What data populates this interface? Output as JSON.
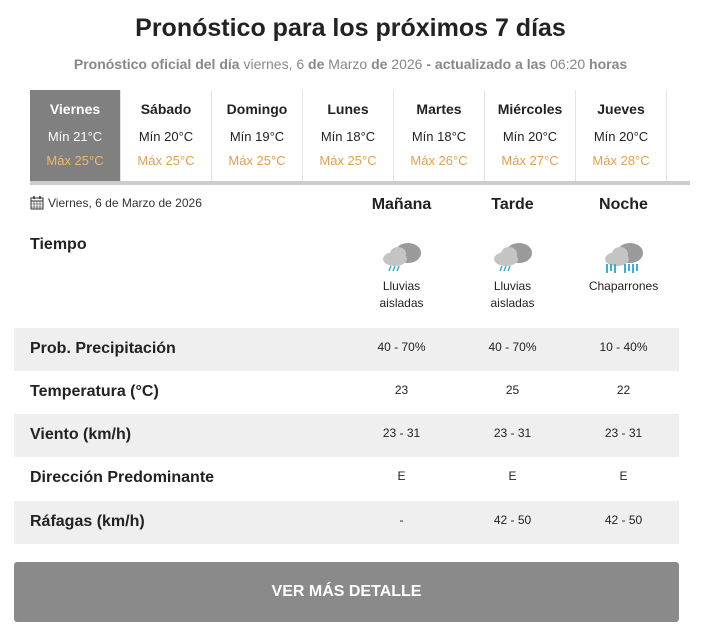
{
  "title": "Pronóstico para los próximos 7 días",
  "subtitle": {
    "a": "Pronóstico oficial del día",
    "b": " viernes, 6 ",
    "c": "de",
    "d": " Marzo ",
    "e": "de",
    "f": " 2026 ",
    "g": "- actualizado a las",
    "h": " 06:20 ",
    "i": "horas"
  },
  "days": [
    {
      "day": "Viernes",
      "min": "Mín 21°C",
      "max": "Máx 25°C"
    },
    {
      "day": "Sábado",
      "min": "Mín 20°C",
      "max": "Máx 25°C"
    },
    {
      "day": "Domingo",
      "min": "Mín 19°C",
      "max": "Máx 25°C"
    },
    {
      "day": "Lunes",
      "min": "Mín 18°C",
      "max": "Máx 25°C"
    },
    {
      "day": "Martes",
      "min": "Mín 18°C",
      "max": "Máx 26°C"
    },
    {
      "day": "Miércoles",
      "min": "Mín 20°C",
      "max": "Máx 27°C"
    },
    {
      "day": "Jueves",
      "min": "Mín 20°C",
      "max": "Máx 28°C"
    }
  ],
  "date": "Viernes, 6 de Marzo de 2026",
  "periods": [
    "Mañana",
    "Tarde",
    "Noche"
  ],
  "tiempo_label": "Tiempo",
  "weather": [
    {
      "icon": "cloud-light-rain-icon",
      "l1": "Lluvias",
      "l2": "aisladas"
    },
    {
      "icon": "cloud-light-rain-icon",
      "l1": "Lluvias",
      "l2": "aisladas"
    },
    {
      "icon": "cloud-showers-icon",
      "l1": "Chaparrones",
      "l2": ""
    }
  ],
  "rows": [
    {
      "label": "Prob. Precipitación",
      "values": [
        "40 - 70%",
        "40 - 70%",
        "10 - 40%"
      ]
    },
    {
      "label": "Temperatura (°C)",
      "values": [
        "23",
        "25",
        "22"
      ]
    },
    {
      "label": "Viento (km/h)",
      "values": [
        "23 - 31",
        "23 - 31",
        "23 - 31"
      ]
    },
    {
      "label": "Dirección Predominante",
      "values": [
        "E",
        "E",
        "E"
      ]
    },
    {
      "label": "Ráfagas (km/h)",
      "values": [
        "-",
        "42 - 50",
        "42 - 50"
      ]
    }
  ],
  "button": "VER MÁS DETALLE",
  "colors": {
    "active_tab": "#808080",
    "max_temp": "#e0a050",
    "rain": "#3aaed8"
  }
}
